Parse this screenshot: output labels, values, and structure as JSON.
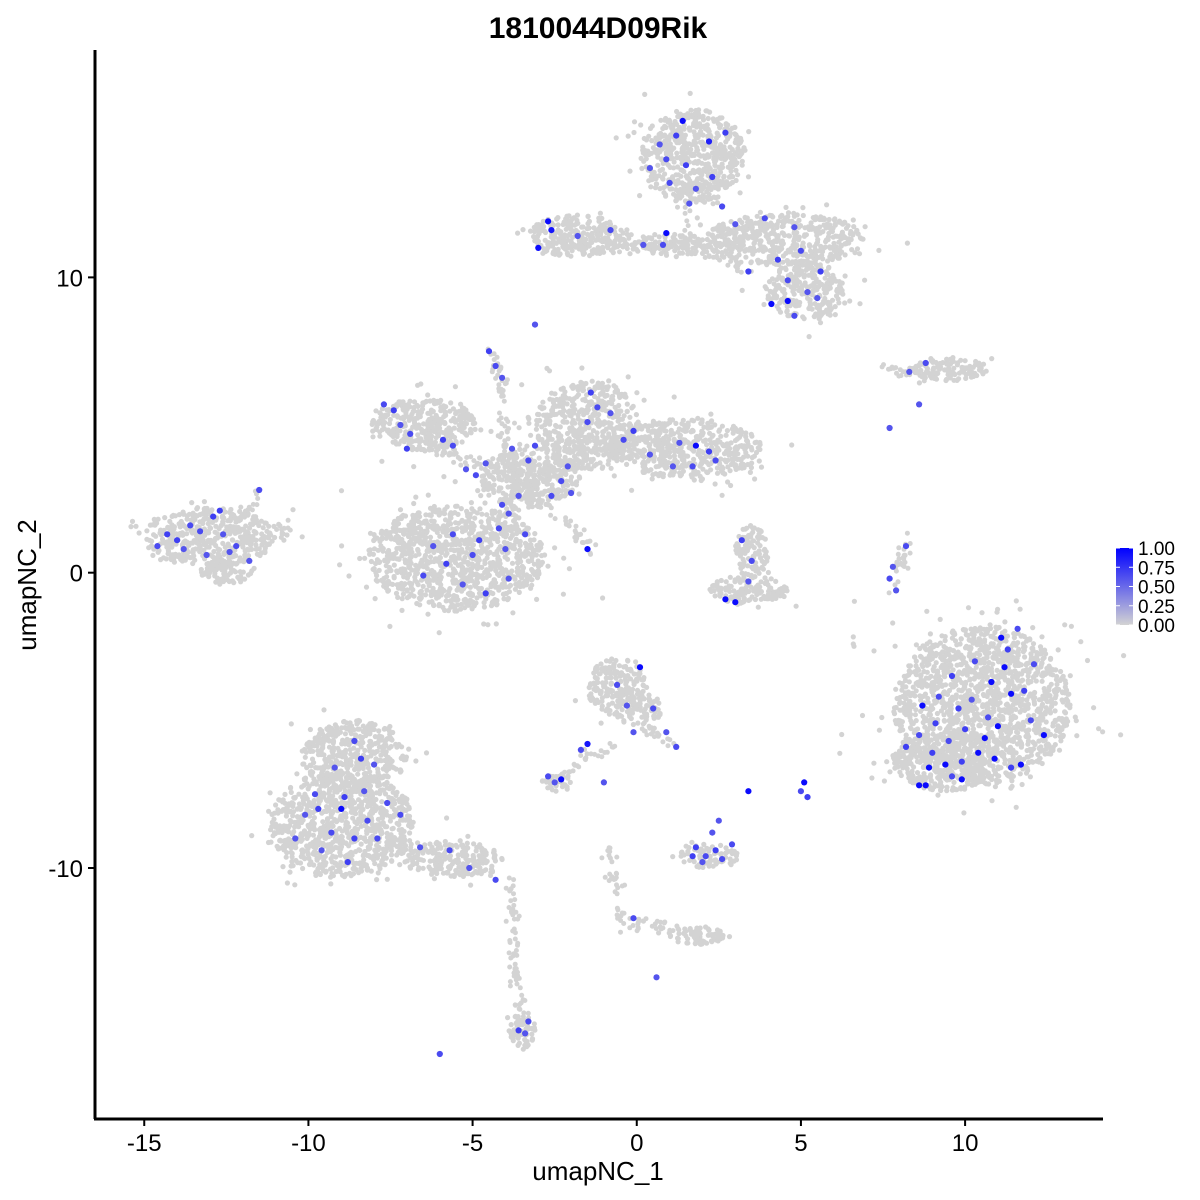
{
  "chart_data": {
    "type": "scatter",
    "title": "1810044D09Rik",
    "xlabel": "umapNC_1",
    "ylabel": "umapNC_2",
    "xlim": [
      -16.5,
      14.2
    ],
    "ylim": [
      -18.5,
      17.7
    ],
    "x_ticks": [
      -15,
      -10,
      -5,
      0,
      5,
      10
    ],
    "x_tick_labels": [
      "-15",
      "-10",
      "-5",
      "0",
      "5",
      "10"
    ],
    "y_ticks": [
      -10,
      0,
      10
    ],
    "y_tick_labels": [
      "-10",
      "0",
      "10"
    ],
    "grid": false,
    "legend_position": "right",
    "color_scale": {
      "low_color": "#d3d3d3",
      "high_color": "#0000ff",
      "breaks": [
        1.0,
        0.75,
        0.5,
        0.25,
        0.0
      ],
      "labels": [
        "1.00",
        "0.75",
        "0.50",
        "0.25",
        "0.00"
      ]
    },
    "background_clusters": [
      {
        "cx": 1.7,
        "cy": 14.1,
        "rx": 1.6,
        "ry": 1.6
      },
      {
        "cx": 4.5,
        "cy": 11.3,
        "rx": 2.4,
        "ry": 0.9
      },
      {
        "cx": 5.1,
        "cy": 9.6,
        "rx": 1.2,
        "ry": 1.0
      },
      {
        "cx": -1.8,
        "cy": 11.4,
        "rx": 1.5,
        "ry": 0.7
      },
      {
        "cx": 1.2,
        "cy": 11.1,
        "rx": 1.4,
        "ry": 0.4
      },
      {
        "cx": 9.5,
        "cy": 6.9,
        "rx": 1.2,
        "ry": 0.4
      },
      {
        "cx": -6.5,
        "cy": 5.0,
        "rx": 1.6,
        "ry": 0.9
      },
      {
        "cx": -1.5,
        "cy": 5.0,
        "rx": 1.6,
        "ry": 1.5
      },
      {
        "cx": 1.5,
        "cy": 4.2,
        "rx": 2.3,
        "ry": 1.0
      },
      {
        "cx": -3.3,
        "cy": 3.2,
        "rx": 1.5,
        "ry": 1.0
      },
      {
        "cx": -5.5,
        "cy": 0.5,
        "rx": 2.7,
        "ry": 1.8
      },
      {
        "cx": -13.0,
        "cy": 1.2,
        "rx": 2.0,
        "ry": 1.0
      },
      {
        "cx": -12.5,
        "cy": 0.0,
        "rx": 0.8,
        "ry": 0.4
      },
      {
        "cx": 3.5,
        "cy": 0.7,
        "rx": 0.5,
        "ry": 0.9
      },
      {
        "cx": 3.4,
        "cy": -0.6,
        "rx": 1.2,
        "ry": 0.5
      },
      {
        "cx": 10.5,
        "cy": -4.5,
        "rx": 2.7,
        "ry": 2.7
      },
      {
        "cx": 9.4,
        "cy": -6.4,
        "rx": 1.6,
        "ry": 1.0
      },
      {
        "cx": -9.0,
        "cy": -8.5,
        "rx": 2.2,
        "ry": 1.8
      },
      {
        "cx": -8.6,
        "cy": -6.2,
        "rx": 1.6,
        "ry": 1.2
      },
      {
        "cx": -5.6,
        "cy": -9.7,
        "rx": 1.5,
        "ry": 0.6
      },
      {
        "cx": -0.6,
        "cy": -3.9,
        "rx": 0.9,
        "ry": 1.0
      },
      {
        "cx": 0.2,
        "cy": -4.6,
        "rx": 0.6,
        "ry": 0.5
      },
      {
        "cx": 2.2,
        "cy": -9.6,
        "rx": 0.9,
        "ry": 0.4
      },
      {
        "cx": -2.4,
        "cy": -7.1,
        "rx": 0.5,
        "ry": 0.3
      },
      {
        "cx": 1.8,
        "cy": -12.3,
        "rx": 0.9,
        "ry": 0.3
      },
      {
        "cx": -3.5,
        "cy": -15.5,
        "rx": 0.4,
        "ry": 0.6
      }
    ],
    "background_strands": [
      [
        [
          -1.5,
          11.3
        ],
        [
          0.6,
          11.0
        ],
        [
          1.6,
          11.2
        ]
      ],
      [
        [
          1.4,
          11.5
        ],
        [
          1.6,
          13.5
        ]
      ],
      [
        [
          -8.0,
          5.0
        ],
        [
          -4.6,
          3.5
        ],
        [
          -3.0,
          2.8
        ]
      ],
      [
        [
          -4.3,
          7.5
        ],
        [
          -4.0,
          4.5
        ],
        [
          -3.4,
          2.6
        ]
      ],
      [
        [
          -3.4,
          2.6
        ],
        [
          -4.3,
          1.2
        ]
      ],
      [
        [
          -3.0,
          2.6
        ],
        [
          -1.4,
          0.8
        ]
      ],
      [
        [
          -0.8,
          4.5
        ],
        [
          -3.2,
          3.0
        ]
      ],
      [
        [
          -11.5,
          2.6
        ],
        [
          -12.2,
          1.5
        ]
      ],
      [
        [
          -10.5,
          1.5
        ],
        [
          -12.0,
          1.0
        ]
      ],
      [
        [
          9.2,
          7.0
        ],
        [
          8.7,
          6.6
        ]
      ],
      [
        [
          7.2,
          7.0
        ],
        [
          8.4,
          6.7
        ]
      ],
      [
        [
          8.3,
          1.2
        ],
        [
          7.8,
          -0.6
        ]
      ],
      [
        [
          -1.5,
          -6.0
        ],
        [
          -2.3,
          -7.0
        ]
      ],
      [
        [
          -0.7,
          -6.0
        ],
        [
          -1.5,
          -6.1
        ]
      ],
      [
        [
          0.0,
          -5.0
        ],
        [
          1.1,
          -5.8
        ]
      ],
      [
        [
          -0.9,
          -9.4
        ],
        [
          -0.4,
          -11.9
        ],
        [
          0.5,
          -11.9
        ],
        [
          2.1,
          -12.5
        ]
      ],
      [
        [
          -3.8,
          -10.4
        ],
        [
          -3.7,
          -14.0
        ],
        [
          -3.3,
          -15.4
        ]
      ],
      [
        [
          -7.3,
          -9.2
        ],
        [
          -4.4,
          -10.2
        ]
      ],
      [
        [
          -1.2,
          11.4
        ],
        [
          -2.8,
          11.0
        ]
      ],
      [
        [
          2.0,
          10.9
        ],
        [
          3.5,
          10.2
        ]
      ]
    ],
    "expressing_cells": [
      [
        1.4,
        15.3,
        0.95
      ],
      [
        1.2,
        14.8,
        0.7
      ],
      [
        0.7,
        14.5,
        0.6
      ],
      [
        0.9,
        14.0,
        0.65
      ],
      [
        1.5,
        13.8,
        0.7
      ],
      [
        2.2,
        14.6,
        0.85
      ],
      [
        2.7,
        14.9,
        0.7
      ],
      [
        0.4,
        13.7,
        0.6
      ],
      [
        1.0,
        13.2,
        0.65
      ],
      [
        1.8,
        13.0,
        0.6
      ],
      [
        2.3,
        13.4,
        0.7
      ],
      [
        1.6,
        12.5,
        0.6
      ],
      [
        2.6,
        12.4,
        0.65
      ],
      [
        3.0,
        11.8,
        0.6
      ],
      [
        0.9,
        11.5,
        0.95
      ],
      [
        0.8,
        11.1,
        0.65
      ],
      [
        0.2,
        11.1,
        0.6
      ],
      [
        -2.7,
        11.9,
        0.95
      ],
      [
        -2.6,
        11.6,
        0.9
      ],
      [
        -3.0,
        11.0,
        0.95
      ],
      [
        -1.8,
        11.4,
        0.6
      ],
      [
        -0.8,
        11.6,
        0.65
      ],
      [
        -3.1,
        8.4,
        0.6
      ],
      [
        3.4,
        10.2,
        0.7
      ],
      [
        4.3,
        10.6,
        0.7
      ],
      [
        5.0,
        10.9,
        0.65
      ],
      [
        5.6,
        10.2,
        0.7
      ],
      [
        4.6,
        9.9,
        0.65
      ],
      [
        5.2,
        9.5,
        0.6
      ],
      [
        4.1,
        9.1,
        0.95
      ],
      [
        4.6,
        9.2,
        0.95
      ],
      [
        5.5,
        9.3,
        0.6
      ],
      [
        4.8,
        8.7,
        0.65
      ],
      [
        3.9,
        12.0,
        0.65
      ],
      [
        4.8,
        11.7,
        0.6
      ],
      [
        8.3,
        6.8,
        0.6
      ],
      [
        8.8,
        7.1,
        0.65
      ],
      [
        8.6,
        5.7,
        0.6
      ],
      [
        7.7,
        4.9,
        0.6
      ],
      [
        -4.5,
        7.5,
        0.7
      ],
      [
        -4.3,
        7.0,
        0.65
      ],
      [
        -4.1,
        6.6,
        0.6
      ],
      [
        -7.7,
        5.7,
        0.65
      ],
      [
        -7.4,
        5.5,
        0.7
      ],
      [
        -7.2,
        5.0,
        0.6
      ],
      [
        -6.9,
        4.7,
        0.65
      ],
      [
        -5.9,
        4.5,
        0.7
      ],
      [
        -5.6,
        4.3,
        0.65
      ],
      [
        -7.0,
        4.2,
        0.7
      ],
      [
        -5.2,
        3.5,
        0.6
      ],
      [
        -4.9,
        3.3,
        0.65
      ],
      [
        -4.6,
        3.7,
        0.6
      ],
      [
        -4.1,
        2.3,
        0.65
      ],
      [
        -3.6,
        2.6,
        0.6
      ],
      [
        -3.3,
        3.8,
        0.65
      ],
      [
        -3.8,
        4.2,
        0.6
      ],
      [
        -3.1,
        4.3,
        0.65
      ],
      [
        -1.4,
        6.1,
        0.7
      ],
      [
        -1.2,
        5.6,
        0.65
      ],
      [
        -0.8,
        5.4,
        0.6
      ],
      [
        -1.5,
        5.1,
        0.65
      ],
      [
        -0.4,
        4.5,
        0.65
      ],
      [
        -0.1,
        4.8,
        0.7
      ],
      [
        -2.1,
        3.6,
        0.6
      ],
      [
        -2.3,
        3.1,
        0.65
      ],
      [
        -2.0,
        2.7,
        0.6
      ],
      [
        -2.6,
        2.6,
        0.65
      ],
      [
        1.3,
        4.4,
        0.6
      ],
      [
        1.8,
        4.3,
        0.95
      ],
      [
        2.2,
        4.1,
        0.7
      ],
      [
        2.4,
        3.8,
        0.65
      ],
      [
        1.1,
        3.6,
        0.6
      ],
      [
        1.7,
        3.6,
        0.65
      ],
      [
        0.4,
        4.0,
        0.6
      ],
      [
        -4.2,
        1.5,
        0.65
      ],
      [
        -3.9,
        2.0,
        0.6
      ],
      [
        -4.8,
        1.1,
        0.7
      ],
      [
        -3.4,
        1.3,
        0.65
      ],
      [
        -4.0,
        0.8,
        0.6
      ],
      [
        -5.6,
        1.3,
        0.65
      ],
      [
        -6.2,
        0.9,
        0.6
      ],
      [
        -5.8,
        0.3,
        0.7
      ],
      [
        -6.5,
        -0.1,
        0.65
      ],
      [
        -5.3,
        -0.4,
        0.6
      ],
      [
        -4.6,
        -0.7,
        0.7
      ],
      [
        -3.9,
        -0.2,
        0.6
      ],
      [
        -5.0,
        0.6,
        0.65
      ],
      [
        -1.5,
        0.8,
        0.95
      ],
      [
        -14.6,
        0.9,
        0.65
      ],
      [
        -14.3,
        1.3,
        0.7
      ],
      [
        -13.8,
        0.8,
        0.6
      ],
      [
        -13.3,
        1.4,
        0.65
      ],
      [
        -12.9,
        1.9,
        0.7
      ],
      [
        -12.6,
        1.3,
        0.6
      ],
      [
        -12.2,
        0.9,
        0.65
      ],
      [
        -13.1,
        0.6,
        0.6
      ],
      [
        -12.7,
        2.1,
        0.7
      ],
      [
        -13.6,
        1.6,
        0.65
      ],
      [
        -12.4,
        0.7,
        0.6
      ],
      [
        -11.5,
        2.8,
        0.65
      ],
      [
        -11.8,
        0.4,
        0.6
      ],
      [
        -14.0,
        1.1,
        0.7
      ],
      [
        3.2,
        1.1,
        0.7
      ],
      [
        3.5,
        0.4,
        0.65
      ],
      [
        2.7,
        -0.9,
        0.95
      ],
      [
        3.0,
        -1.0,
        0.95
      ],
      [
        3.4,
        -0.3,
        0.6
      ],
      [
        8.2,
        0.9,
        0.65
      ],
      [
        7.8,
        0.2,
        0.6
      ],
      [
        7.7,
        -0.2,
        0.65
      ],
      [
        7.9,
        -0.6,
        0.6
      ],
      [
        11.1,
        -2.2,
        0.95
      ],
      [
        11.6,
        -1.9,
        0.65
      ],
      [
        11.3,
        -2.6,
        0.7
      ],
      [
        11.2,
        -3.2,
        0.95
      ],
      [
        10.8,
        -3.7,
        0.95
      ],
      [
        11.4,
        -4.1,
        0.95
      ],
      [
        11.8,
        -4.0,
        0.7
      ],
      [
        10.3,
        -3.0,
        0.65
      ],
      [
        9.6,
        -3.5,
        0.7
      ],
      [
        9.2,
        -4.2,
        0.65
      ],
      [
        9.8,
        -4.6,
        0.7
      ],
      [
        10.2,
        -4.3,
        0.6
      ],
      [
        10.7,
        -4.9,
        0.65
      ],
      [
        11.0,
        -5.2,
        0.95
      ],
      [
        10.0,
        -5.3,
        0.7
      ],
      [
        9.5,
        -5.7,
        0.65
      ],
      [
        9.1,
        -5.1,
        0.7
      ],
      [
        8.7,
        -4.5,
        0.95
      ],
      [
        8.6,
        -5.5,
        0.65
      ],
      [
        9.0,
        -6.1,
        0.7
      ],
      [
        9.4,
        -6.5,
        0.95
      ],
      [
        8.9,
        -6.6,
        0.95
      ],
      [
        9.6,
        -6.9,
        0.65
      ],
      [
        9.9,
        -6.4,
        0.7
      ],
      [
        10.4,
        -6.1,
        0.95
      ],
      [
        10.9,
        -6.3,
        0.95
      ],
      [
        11.4,
        -6.6,
        0.7
      ],
      [
        11.7,
        -6.5,
        0.95
      ],
      [
        12.4,
        -5.5,
        0.95
      ],
      [
        12.0,
        -5.0,
        0.65
      ],
      [
        8.6,
        -7.2,
        0.95
      ],
      [
        8.8,
        -7.2,
        0.95
      ],
      [
        9.9,
        -7.0,
        0.95
      ],
      [
        10.6,
        -5.6,
        0.95
      ],
      [
        12.1,
        -3.1,
        0.65
      ],
      [
        8.2,
        -5.9,
        0.7
      ],
      [
        -8.6,
        -5.7,
        0.65
      ],
      [
        -9.2,
        -6.6,
        0.6
      ],
      [
        -8.4,
        -6.3,
        0.7
      ],
      [
        -9.8,
        -7.5,
        0.65
      ],
      [
        -8.9,
        -7.6,
        0.7
      ],
      [
        -8.3,
        -7.4,
        0.6
      ],
      [
        -9.0,
        -8.0,
        0.95
      ],
      [
        -9.7,
        -8.0,
        0.7
      ],
      [
        -8.2,
        -8.4,
        0.65
      ],
      [
        -10.1,
        -8.2,
        0.6
      ],
      [
        -9.3,
        -8.8,
        0.65
      ],
      [
        -8.6,
        -9.0,
        0.7
      ],
      [
        -9.6,
        -9.4,
        0.6
      ],
      [
        -7.9,
        -9.0,
        0.65
      ],
      [
        -8.8,
        -9.8,
        0.7
      ],
      [
        -10.4,
        -9.0,
        0.6
      ],
      [
        -7.6,
        -7.8,
        0.65
      ],
      [
        -8.0,
        -6.5,
        0.6
      ],
      [
        -7.2,
        -8.2,
        0.65
      ],
      [
        -5.7,
        -9.4,
        0.65
      ],
      [
        -5.1,
        -10.0,
        0.6
      ],
      [
        -4.3,
        -10.4,
        0.65
      ],
      [
        -6.6,
        -9.3,
        0.6
      ],
      [
        0.1,
        -3.2,
        0.95
      ],
      [
        -0.6,
        -3.8,
        0.65
      ],
      [
        -0.3,
        -4.5,
        0.6
      ],
      [
        0.5,
        -4.6,
        0.65
      ],
      [
        -0.1,
        -5.4,
        0.6
      ],
      [
        -1.5,
        -5.8,
        0.9
      ],
      [
        -1.7,
        -6.0,
        0.65
      ],
      [
        -2.3,
        -7.0,
        0.95
      ],
      [
        -2.7,
        -6.9,
        0.65
      ],
      [
        -2.5,
        -7.1,
        0.6
      ],
      [
        -1.0,
        -7.1,
        0.6
      ],
      [
        1.2,
        -5.9,
        0.65
      ],
      [
        0.9,
        -5.4,
        0.6
      ],
      [
        3.4,
        -7.4,
        0.95
      ],
      [
        5.1,
        -7.1,
        0.95
      ],
      [
        5.2,
        -7.6,
        0.7
      ],
      [
        5.0,
        -7.4,
        0.65
      ],
      [
        1.8,
        -9.3,
        0.7
      ],
      [
        2.1,
        -9.6,
        0.65
      ],
      [
        2.4,
        -9.4,
        0.7
      ],
      [
        2.0,
        -9.8,
        0.6
      ],
      [
        2.6,
        -9.7,
        0.65
      ],
      [
        2.3,
        -8.8,
        0.6
      ],
      [
        2.9,
        -9.2,
        0.65
      ],
      [
        1.7,
        -9.6,
        0.7
      ],
      [
        2.5,
        -8.4,
        0.6
      ],
      [
        -0.1,
        -11.7,
        0.65
      ],
      [
        0.6,
        -13.7,
        0.6
      ],
      [
        -3.6,
        -15.5,
        0.7
      ],
      [
        -3.3,
        -15.2,
        0.65
      ],
      [
        -3.4,
        -15.6,
        0.6
      ],
      [
        -6.0,
        -16.3,
        0.65
      ]
    ]
  }
}
